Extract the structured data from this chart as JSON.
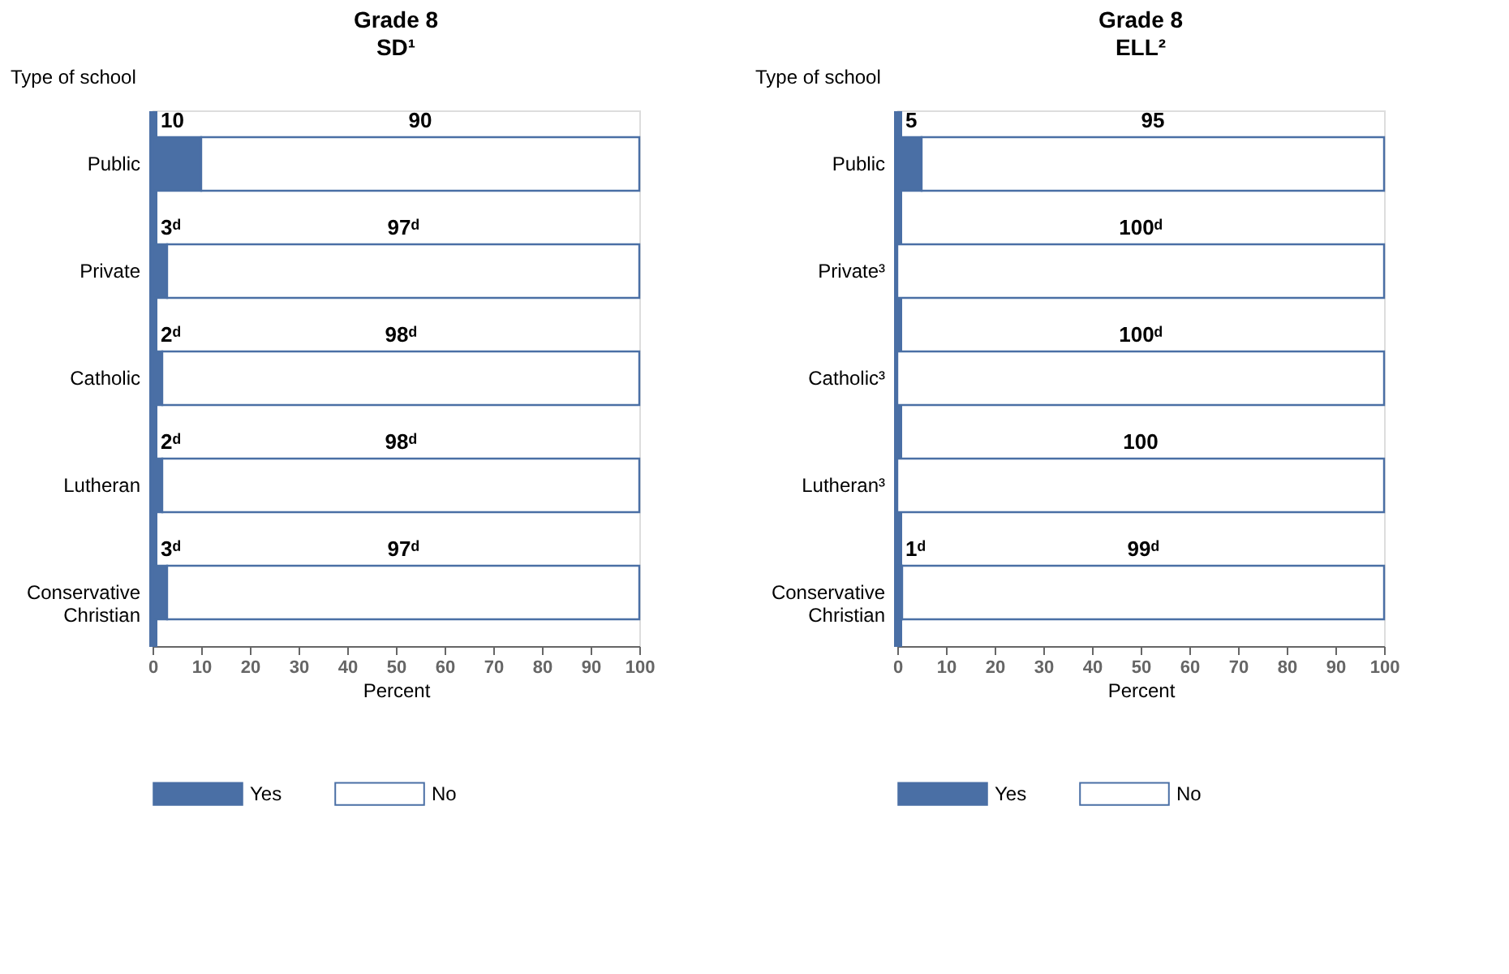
{
  "chart_data": [
    {
      "type": "bar",
      "orientation": "horizontal",
      "stacked": true,
      "title": "Grade 8",
      "subtitle": "SD¹",
      "ylabel": "Type of school",
      "xlabel": "Percent",
      "categories": [
        "Public",
        "Private",
        "Catholic",
        "Lutheran",
        "Conservative Christian"
      ],
      "series": [
        {
          "name": "Yes",
          "color": "#4a6fa5",
          "values": [
            10,
            3,
            2,
            2,
            3
          ],
          "value_labels": [
            "10",
            "3ᵈ",
            "2ᵈ",
            "2ᵈ",
            "3ᵈ"
          ]
        },
        {
          "name": "No",
          "color": "#ffffff",
          "values": [
            90,
            97,
            98,
            98,
            97
          ],
          "value_labels": [
            "90",
            "97ᵈ",
            "98ᵈ",
            "98ᵈ",
            "97ᵈ"
          ]
        }
      ],
      "xlim": [
        0,
        100
      ],
      "xticks": [
        0,
        10,
        20,
        30,
        40,
        50,
        60,
        70,
        80,
        90,
        100
      ],
      "grid": false,
      "legend": "bottom"
    },
    {
      "type": "bar",
      "orientation": "horizontal",
      "stacked": true,
      "title": "Grade 8",
      "subtitle": "ELL²",
      "ylabel": "Type of school",
      "xlabel": "Percent",
      "categories": [
        "Public",
        "Private³",
        "Catholic³",
        "Lutheran³",
        "Conservative Christian"
      ],
      "series": [
        {
          "name": "Yes",
          "color": "#4a6fa5",
          "values": [
            5,
            0,
            0,
            0,
            1
          ],
          "value_labels": [
            "5",
            null,
            null,
            null,
            "1ᵈ"
          ]
        },
        {
          "name": "No",
          "color": "#ffffff",
          "values": [
            95,
            100,
            100,
            100,
            99
          ],
          "value_labels": [
            "95",
            "100ᵈ",
            "100ᵈ",
            "100",
            "99ᵈ"
          ]
        }
      ],
      "xlim": [
        0,
        100
      ],
      "xticks": [
        0,
        10,
        20,
        30,
        40,
        50,
        60,
        70,
        80,
        90,
        100
      ],
      "grid": false,
      "legend": "bottom"
    }
  ]
}
